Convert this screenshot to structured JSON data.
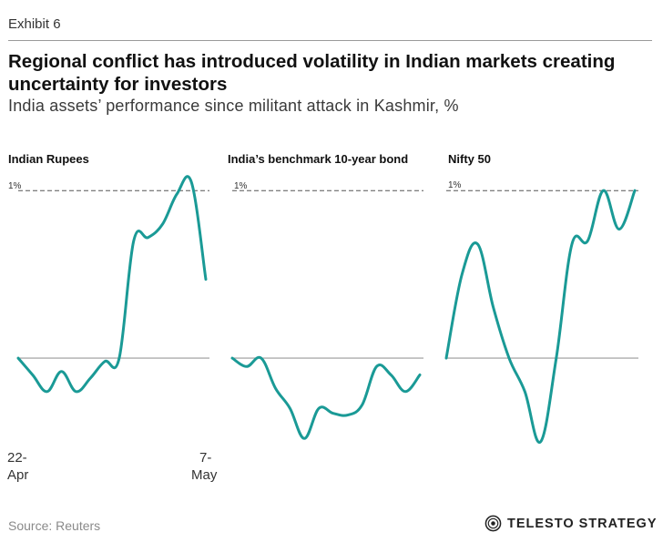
{
  "header": {
    "exhibit": "Exhibit 6",
    "title": "Regional conflict has introduced volatility in Indian markets creating uncertainty for investors",
    "subtitle": "India assets’ performance since militant attack in Kashmir, %"
  },
  "footer": {
    "source": "Source: Reuters",
    "brand": "TELESTO STRATEGY"
  },
  "colors": {
    "line": "#1a9a96",
    "zero": "#9a9a9a",
    "ref": "#555555"
  },
  "x_axis": {
    "start_label": [
      "22-",
      "Apr"
    ],
    "end_label": [
      "7-",
      "May"
    ]
  },
  "chart_data": [
    {
      "type": "line",
      "title": "Indian Rupees",
      "reference_label": "1%",
      "reference_value": 1,
      "ylim": [
        -0.5,
        1.05
      ],
      "values": [
        0.0,
        -0.1,
        -0.2,
        -0.08,
        -0.2,
        -0.12,
        -0.02,
        0.0,
        0.7,
        0.72,
        0.8,
        0.98,
        1.05,
        0.47
      ]
    },
    {
      "type": "line",
      "title": "India’s benchmark 10-year bond",
      "reference_label": "1%",
      "reference_value": 1,
      "ylim": [
        -0.5,
        1.05
      ],
      "values": [
        0.0,
        -0.05,
        0.0,
        -0.18,
        -0.3,
        -0.48,
        -0.3,
        -0.33,
        -0.34,
        -0.28,
        -0.05,
        -0.1,
        -0.2,
        -0.1
      ]
    },
    {
      "type": "line",
      "title": "Nifty 50",
      "reference_label": "1%",
      "reference_value": 1,
      "ylim": [
        -0.5,
        1.05
      ],
      "values": [
        0.0,
        0.5,
        0.68,
        0.3,
        0.0,
        -0.2,
        -0.5,
        0.0,
        0.68,
        0.7,
        1.0,
        0.77,
        1.0
      ]
    }
  ]
}
